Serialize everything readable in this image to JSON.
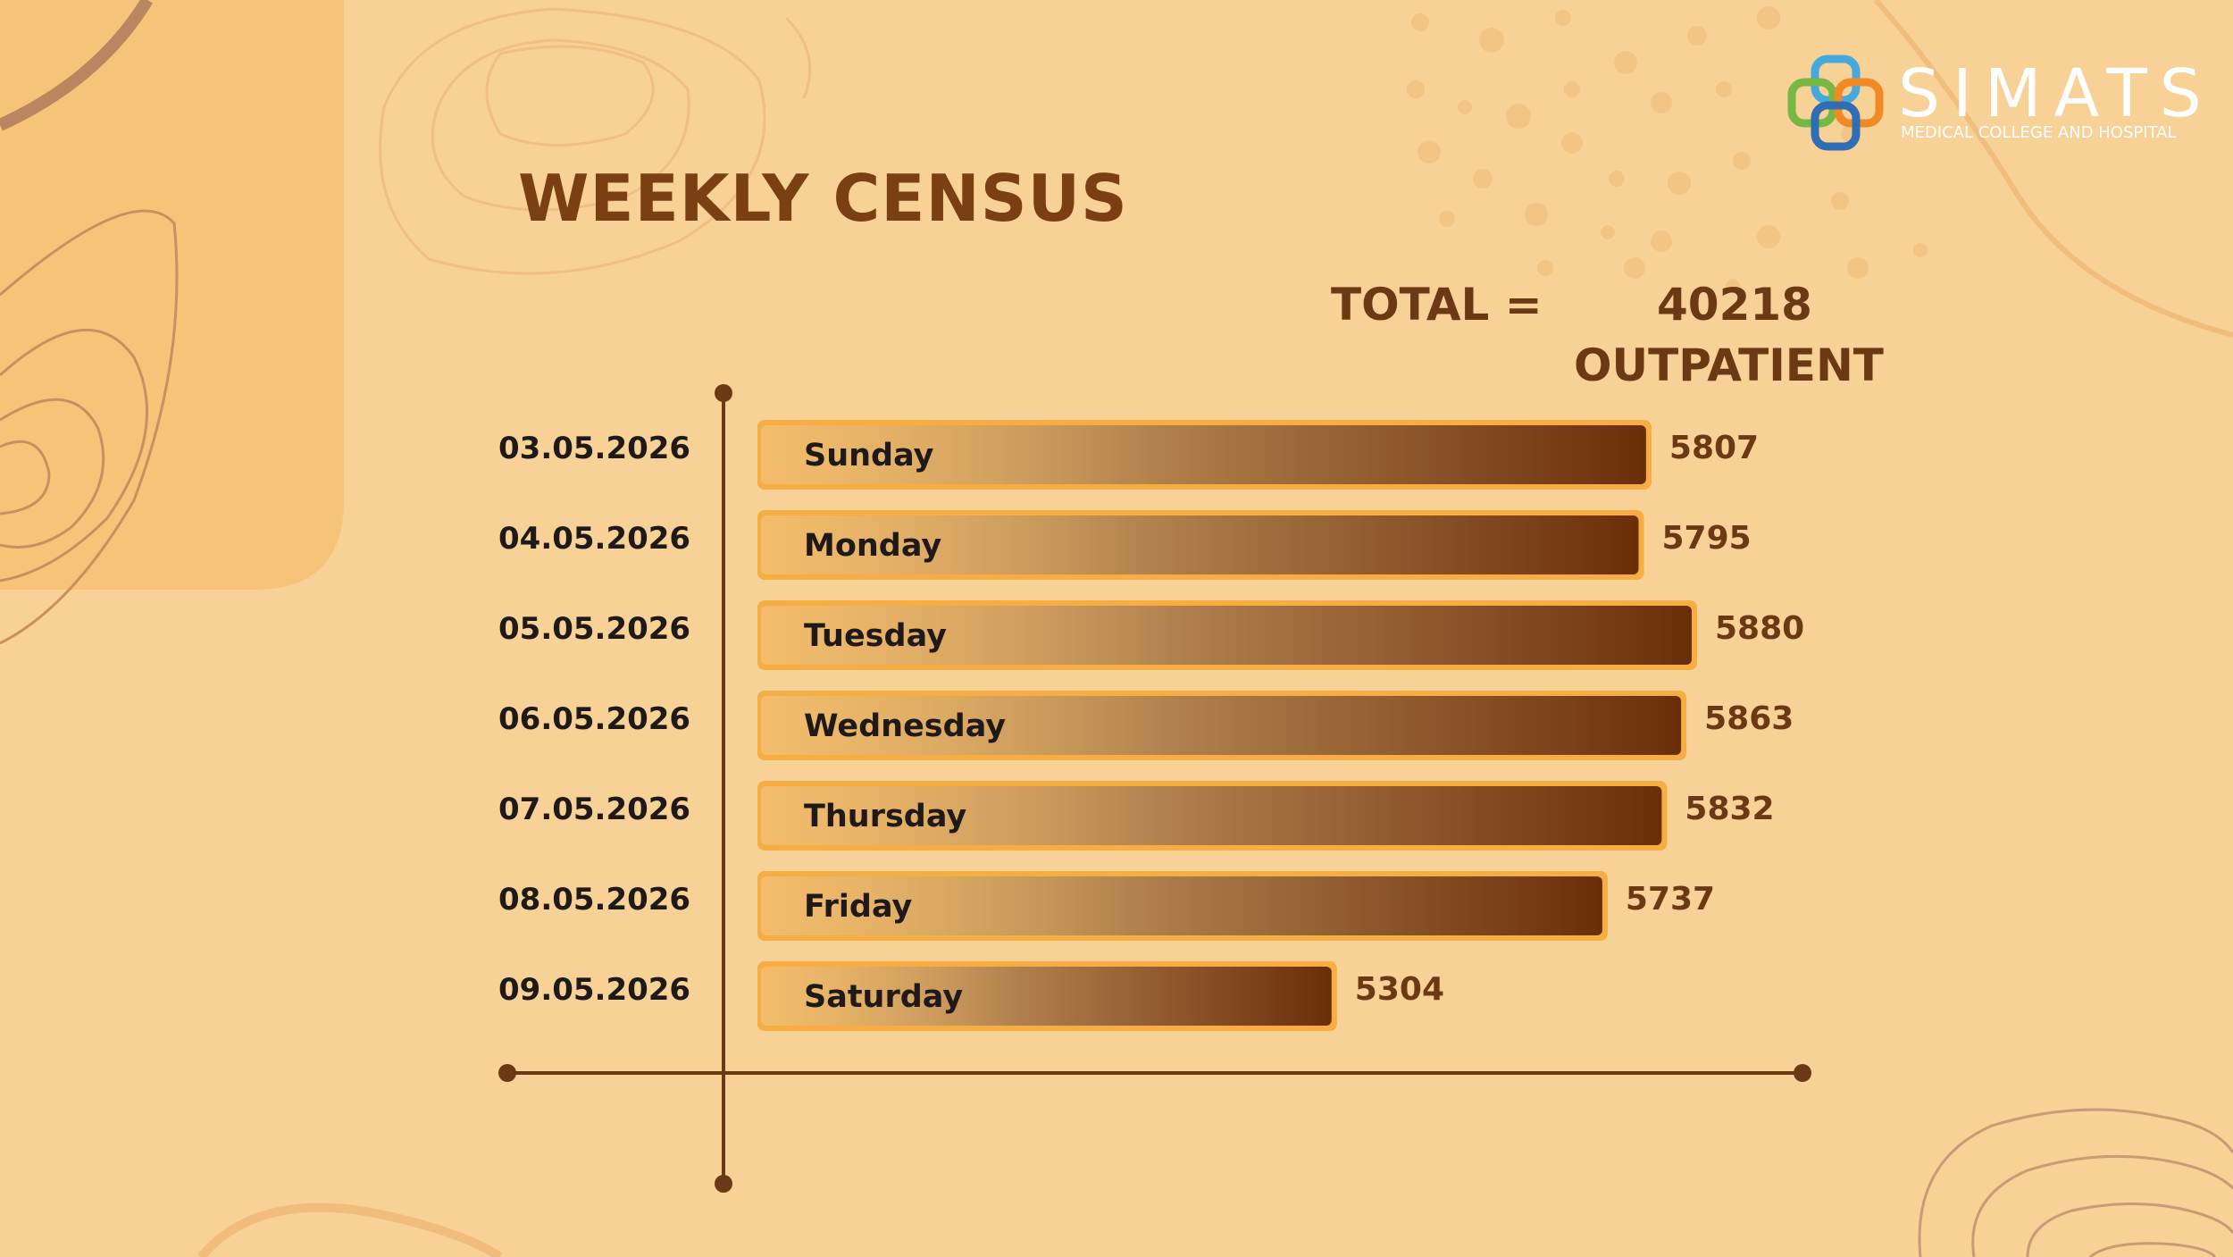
{
  "title": "WEEKLY CENSUS",
  "total": {
    "label": "TOTAL =",
    "value": "40218",
    "unit": "OUTPATIENT"
  },
  "logo": {
    "name": "SIMATS",
    "subtitle": "MEDICAL COLLEGE AND HOSPITAL",
    "icon": "interlocked-rings-icon"
  },
  "colors": {
    "background": "#f8d196",
    "title": "#7a3f12",
    "bar_start": "#f0c98a",
    "bar_end": "#6b2e0a",
    "bar_outline": "#f5a93a",
    "axis": "#6b3a14"
  },
  "chart_data": {
    "type": "bar",
    "orientation": "horizontal",
    "title": "WEEKLY CENSUS",
    "dates": [
      "03.05.2026",
      "04.05.2026",
      "05.05.2026",
      "06.05.2026",
      "07.05.2026",
      "08.05.2026",
      "09.05.2026"
    ],
    "categories": [
      "Sunday",
      "Monday",
      "Tuesday",
      "Wednesday",
      "Thursday",
      "Friday",
      "Saturday"
    ],
    "values": [
      5807,
      5795,
      5880,
      5863,
      5832,
      5737,
      5304
    ],
    "grid": false,
    "legend": "none"
  }
}
